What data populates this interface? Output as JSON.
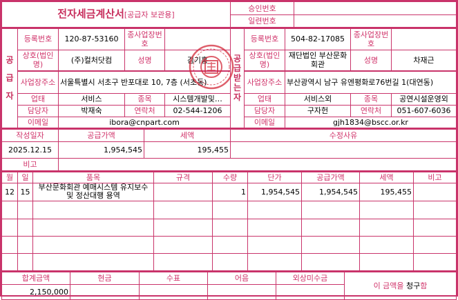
{
  "header": {
    "title": "전자세금계산서",
    "subtitle": "[공급자 보관용]",
    "approval_label": "승인번호",
    "approval_value": "",
    "serial_label": "일련번호",
    "serial_value": ""
  },
  "supplier": {
    "side_label": "공급자",
    "reg_label": "등록번호",
    "reg_no": "120-87-53160",
    "sub_label": "종사업장번호",
    "sub_no": "",
    "name_label": "상호(법인명)",
    "name": "(주)컬처닷컴",
    "rep_label": "성명",
    "rep": "김기홍",
    "addr_label": "사업장주소",
    "addr": "서울특별시 서초구 반포대로 10, 7층 (서초동)",
    "type_label": "업태",
    "type": "서비스",
    "item_label": "종목",
    "item": "시스템개발및…",
    "contact_label": "담당자",
    "contact": "박재숙",
    "phone_label": "연락처",
    "phone": "02-544-1206",
    "email_label": "이메일",
    "email": "ibora@cnpart.com"
  },
  "buyer": {
    "side_label": "공급받는자",
    "reg_label": "등록번호",
    "reg_no": "504-82-17085",
    "sub_label": "종사업장번호",
    "sub_no": "",
    "name_label": "상호(법인명)",
    "name": "재단법인 부산문화회관",
    "rep_label": "성명",
    "rep": "차재근",
    "addr_label": "사업장주소",
    "addr": "부산광역시 남구 유엔평화로76번길 1(대연동)",
    "type_label": "업태",
    "type": "서비스외",
    "item_label": "종목",
    "item": "공연시설운영외",
    "contact_label": "담당자",
    "contact": "구자헌",
    "phone_label": "연락처",
    "phone": "051-607-6036",
    "email_label": "이메일",
    "email": "gjh1834@bscc.or.kr"
  },
  "summary": {
    "date_label": "작성일자",
    "supply_label": "공급가액",
    "tax_label": "세액",
    "reason_label": "수정사유",
    "date": "2025.12.15",
    "supply": "1,954,545",
    "tax": "195,455",
    "reason": "",
    "note_label": "비고",
    "note": ""
  },
  "items": {
    "headers": [
      "월",
      "일",
      "품목",
      "규격",
      "수량",
      "단가",
      "공급가액",
      "세액",
      "비고"
    ],
    "rows": [
      [
        "12",
        "15",
        "부산문화회관 예매시스템 유지보수 및 정산대행 용역",
        "",
        "1",
        "1,954,545",
        "1,954,545",
        "195,455",
        ""
      ]
    ]
  },
  "footer": {
    "headers": [
      "합계금액",
      "현금",
      "수표",
      "어음",
      "외상미수금"
    ],
    "values": [
      "2,150,000",
      "",
      "",
      "",
      ""
    ],
    "claim_prefix": "이 금액을",
    "claim_word": "청구",
    "claim_suffix": "함"
  },
  "colors": {
    "border": "#c9336a",
    "label": "#d0336a",
    "stamp": "#d42a3a"
  }
}
